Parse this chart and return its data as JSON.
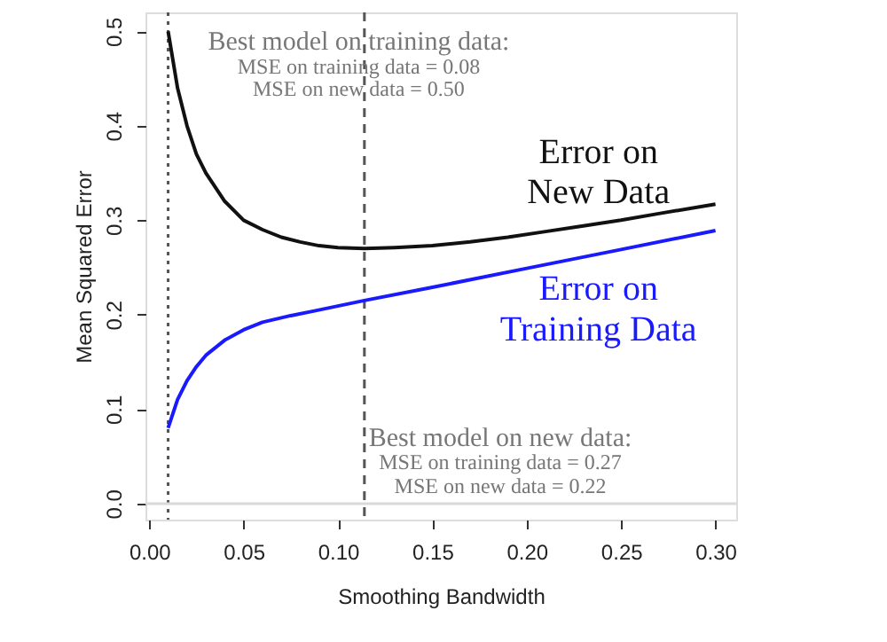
{
  "chart_data": {
    "type": "line",
    "xlabel": "Smoothing Bandwidth",
    "ylabel": "Mean Squared Error",
    "xlim": [
      -0.002,
      0.311
    ],
    "ylim": [
      -0.017,
      0.52
    ],
    "xticks": [
      {
        "value": 0,
        "label": "0.00"
      },
      0.05,
      {
        "value": 0.1,
        "label": "0.10"
      },
      0.15,
      {
        "value": 0.2,
        "label": "0.20"
      },
      0.25,
      {
        "value": 0.3,
        "label": "0.30"
      }
    ],
    "yticks": [
      {
        "value": 0,
        "label": "0.0"
      },
      0.1,
      0.2,
      0.3,
      0.4,
      0.5
    ],
    "grid": false,
    "marker": "none",
    "line_style": "solid",
    "series": [
      {
        "name": "Error on New Data",
        "color": "#111111",
        "x": [
          0.01,
          0.015,
          0.02,
          0.025,
          0.03,
          0.04,
          0.05,
          0.06,
          0.07,
          0.08,
          0.09,
          0.1,
          0.114,
          0.13,
          0.15,
          0.17,
          0.19,
          0.21,
          0.23,
          0.25,
          0.27,
          0.3
        ],
        "values": [
          0.5,
          0.44,
          0.4,
          0.37,
          0.35,
          0.32,
          0.3,
          0.29,
          0.282,
          0.277,
          0.273,
          0.271,
          0.27,
          0.271,
          0.273,
          0.277,
          0.282,
          0.288,
          0.294,
          0.3,
          0.307,
          0.317
        ]
      },
      {
        "name": "Error on Training Data",
        "color": "#1a1aff",
        "x": [
          0.01,
          0.015,
          0.02,
          0.025,
          0.03,
          0.04,
          0.05,
          0.06,
          0.075,
          0.0875,
          0.114,
          0.15,
          0.2,
          0.25,
          0.3
        ],
        "values": [
          0.08,
          0.11,
          0.13,
          0.145,
          0.157,
          0.173,
          0.184,
          0.192,
          0.199,
          0.204,
          0.215,
          0.229,
          0.249,
          0.269,
          0.289
        ]
      }
    ],
    "ref_lines": [
      {
        "axis": "y",
        "value": 0,
        "color": "#d9d9d9",
        "line_style": "solid"
      },
      {
        "axis": "x",
        "value": 0.01,
        "color": "#555555",
        "line_style": "dotted"
      },
      {
        "axis": "x",
        "value": 0.114,
        "color": "#555555",
        "line_style": "dashed"
      }
    ],
    "annotations": [
      "Best model on training data:",
      "MSE on training data = 0.08",
      "MSE on new data = 0.50",
      "Best model on new data:",
      "MSE on training data = 0.27",
      "MSE on new data = 0.22"
    ]
  }
}
